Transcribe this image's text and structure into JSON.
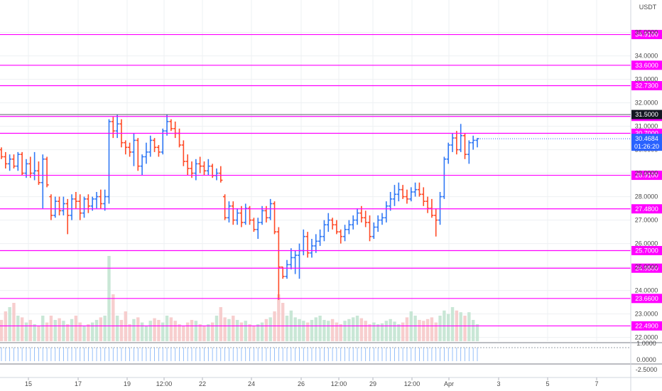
{
  "quote_currency": "USDT",
  "colors": {
    "up": "#3179f5",
    "down": "#ff4a27",
    "level_line": "#ff00ff",
    "level_label_bg": "#ff00ff",
    "price_label_bg": "#2962ff",
    "ref_label_bg": "#131722",
    "vol_up": "#bfe3cf",
    "vol_down": "#f6c6c6",
    "grid": "#eef0f3",
    "axis_text": "#4a4a4a"
  },
  "price_axis": {
    "ticks": [
      "35.0000",
      "34.0000",
      "33.0000",
      "32.0000",
      "31.0000",
      "30.0000",
      "29.0000",
      "28.0000",
      "27.0000",
      "26.0000",
      "25.0000",
      "24.0000",
      "23.0000",
      "22.0000"
    ]
  },
  "horizontal_levels": [
    "34.9100",
    "33.6000",
    "32.7300",
    "31.4200",
    "30.7000",
    "28.9100",
    "27.4800",
    "25.7000",
    "24.9500",
    "23.6600",
    "22.4900"
  ],
  "reference_level": "31.5000",
  "last_price": {
    "price": "30.4684",
    "countdown": "01:26:20"
  },
  "indicator_axis": {
    "ticks": [
      "1.0000",
      "0.0000",
      "-2.5000"
    ]
  },
  "time_axis": {
    "ticks": [
      "15",
      "17",
      "19",
      "12:00",
      "22",
      "24",
      "26",
      "12:00",
      "29",
      "12:00",
      "Apr",
      "3",
      "5",
      "7"
    ]
  },
  "chart_data": {
    "type": "ohlc",
    "series_description": "OHLC bars, USDT quoted, approx 6-hourly, mid-March to early April",
    "ohlc": [
      [
        30.0,
        30.1,
        29.6,
        29.7
      ],
      [
        29.7,
        29.9,
        29.2,
        29.4
      ],
      [
        29.4,
        29.8,
        29.1,
        29.6
      ],
      [
        29.6,
        29.8,
        29.2,
        29.3
      ],
      [
        29.3,
        29.9,
        29.1,
        29.8
      ],
      [
        29.8,
        29.9,
        28.9,
        29.0
      ],
      [
        29.0,
        29.6,
        28.8,
        29.4
      ],
      [
        29.4,
        29.7,
        28.8,
        29.0
      ],
      [
        29.0,
        29.9,
        28.7,
        29.1
      ],
      [
        29.1,
        29.5,
        28.5,
        28.6
      ],
      [
        28.6,
        29.8,
        27.5,
        29.6
      ],
      [
        29.6,
        29.7,
        28.4,
        28.5
      ],
      [
        28.0,
        28.1,
        27.0,
        27.2
      ],
      [
        27.2,
        28.0,
        27.1,
        27.8
      ],
      [
        27.8,
        28.0,
        27.2,
        27.4
      ],
      [
        27.4,
        28.0,
        27.2,
        27.7
      ],
      [
        27.7,
        27.9,
        26.4,
        27.2
      ],
      [
        27.2,
        28.1,
        27.0,
        27.9
      ],
      [
        27.9,
        28.2,
        27.5,
        27.8
      ],
      [
        27.8,
        28.1,
        27.0,
        27.3
      ],
      [
        27.3,
        28.0,
        27.1,
        27.9
      ],
      [
        27.9,
        28.1,
        27.3,
        27.6
      ],
      [
        27.6,
        28.0,
        27.4,
        27.9
      ],
      [
        27.9,
        28.2,
        27.5,
        28.0
      ],
      [
        28.0,
        28.3,
        27.5,
        27.7
      ],
      [
        27.7,
        28.3,
        27.4,
        28.0
      ],
      [
        28.0,
        31.3,
        27.7,
        31.2
      ],
      [
        31.2,
        31.4,
        30.5,
        30.8
      ],
      [
        30.8,
        31.5,
        30.5,
        31.1
      ],
      [
        31.1,
        31.3,
        30.1,
        30.3
      ],
      [
        30.3,
        30.4,
        29.8,
        30.1
      ],
      [
        30.1,
        30.3,
        29.7,
        29.9
      ],
      [
        29.9,
        30.7,
        29.3,
        30.4
      ],
      [
        30.4,
        30.5,
        29.1,
        29.3
      ],
      [
        29.3,
        29.8,
        28.9,
        29.7
      ],
      [
        29.7,
        30.3,
        29.4,
        29.9
      ],
      [
        29.9,
        30.6,
        29.7,
        30.4
      ],
      [
        30.4,
        30.5,
        29.9,
        30.1
      ],
      [
        30.1,
        30.2,
        29.7,
        29.9
      ],
      [
        29.9,
        30.9,
        29.8,
        30.8
      ],
      [
        30.8,
        31.5,
        30.6,
        31.2
      ],
      [
        31.2,
        31.3,
        30.8,
        30.9
      ],
      [
        30.9,
        31.2,
        30.5,
        30.7
      ],
      [
        30.7,
        30.9,
        30.1,
        30.2
      ],
      [
        30.2,
        30.4,
        29.3,
        29.5
      ],
      [
        29.5,
        29.8,
        28.9,
        29.2
      ],
      [
        29.2,
        29.5,
        28.8,
        29.0
      ],
      [
        29.0,
        29.6,
        28.7,
        29.4
      ],
      [
        29.4,
        29.7,
        29.0,
        29.3
      ],
      [
        29.3,
        29.5,
        28.9,
        29.1
      ],
      [
        29.1,
        29.6,
        28.9,
        29.3
      ],
      [
        29.3,
        29.4,
        28.8,
        28.9
      ],
      [
        28.9,
        29.2,
        28.7,
        29.0
      ],
      [
        29.0,
        29.3,
        28.6,
        28.7
      ],
      [
        28.0,
        28.1,
        27.0,
        27.1
      ],
      [
        27.1,
        27.8,
        26.9,
        27.6
      ],
      [
        27.6,
        27.8,
        26.8,
        27.0
      ],
      [
        27.0,
        27.5,
        26.8,
        27.3
      ],
      [
        27.3,
        27.6,
        26.7,
        26.9
      ],
      [
        26.9,
        27.7,
        26.8,
        27.5
      ],
      [
        27.5,
        27.6,
        26.8,
        27.0
      ],
      [
        27.0,
        27.1,
        26.5,
        26.6
      ],
      [
        26.6,
        27.1,
        26.2,
        26.9
      ],
      [
        26.9,
        27.6,
        26.8,
        27.4
      ],
      [
        27.4,
        27.6,
        26.9,
        27.1
      ],
      [
        27.1,
        27.9,
        27.0,
        27.7
      ],
      [
        27.7,
        27.8,
        26.4,
        26.5
      ],
      [
        26.5,
        26.7,
        23.6,
        25.0
      ],
      [
        25.0,
        25.0,
        24.5,
        24.6
      ],
      [
        24.6,
        25.3,
        24.5,
        25.1
      ],
      [
        25.1,
        25.8,
        24.9,
        25.4
      ],
      [
        25.4,
        25.7,
        24.7,
        25.5
      ],
      [
        25.5,
        26.0,
        24.5,
        25.7
      ],
      [
        25.7,
        26.6,
        25.5,
        26.3
      ],
      [
        26.3,
        26.5,
        25.4,
        25.6
      ],
      [
        25.6,
        26.2,
        25.4,
        25.9
      ],
      [
        25.9,
        26.4,
        25.6,
        26.1
      ],
      [
        26.1,
        26.6,
        25.9,
        26.3
      ],
      [
        26.3,
        27.0,
        26.1,
        26.8
      ],
      [
        26.8,
        27.3,
        26.5,
        27.0
      ],
      [
        27.0,
        27.1,
        26.6,
        26.8
      ],
      [
        26.8,
        27.0,
        26.4,
        26.5
      ],
      [
        26.5,
        26.6,
        26.0,
        26.3
      ],
      [
        26.3,
        26.8,
        26.1,
        26.6
      ],
      [
        26.6,
        27.0,
        26.4,
        26.8
      ],
      [
        26.8,
        27.2,
        26.6,
        27.0
      ],
      [
        27.0,
        27.5,
        26.8,
        27.3
      ],
      [
        27.3,
        27.6,
        26.9,
        27.1
      ],
      [
        27.1,
        27.4,
        26.7,
        26.9
      ],
      [
        26.9,
        27.2,
        26.1,
        26.3
      ],
      [
        26.3,
        26.9,
        26.2,
        26.7
      ],
      [
        26.7,
        27.2,
        26.5,
        27.0
      ],
      [
        27.0,
        27.3,
        26.8,
        27.1
      ],
      [
        27.1,
        27.8,
        26.9,
        27.6
      ],
      [
        27.6,
        28.2,
        27.4,
        27.9
      ],
      [
        27.9,
        28.5,
        27.6,
        28.1
      ],
      [
        28.1,
        28.6,
        27.8,
        28.3
      ],
      [
        28.3,
        28.5,
        27.9,
        28.0
      ],
      [
        28.0,
        28.3,
        27.7,
        27.9
      ],
      [
        27.9,
        28.4,
        27.8,
        28.2
      ],
      [
        28.2,
        28.6,
        28.0,
        28.3
      ],
      [
        28.3,
        28.6,
        28.0,
        28.1
      ],
      [
        28.1,
        28.4,
        27.6,
        27.8
      ],
      [
        27.8,
        28.0,
        27.3,
        27.5
      ],
      [
        27.5,
        27.9,
        27.1,
        27.2
      ],
      [
        27.2,
        27.5,
        26.3,
        27.0
      ],
      [
        27.0,
        28.2,
        26.8,
        28.0
      ],
      [
        28.0,
        29.7,
        27.9,
        29.6
      ],
      [
        29.6,
        30.3,
        29.4,
        30.2
      ],
      [
        30.2,
        30.7,
        29.9,
        30.5
      ],
      [
        30.5,
        30.8,
        29.8,
        30.0
      ],
      [
        30.0,
        31.1,
        29.9,
        30.6
      ],
      [
        30.6,
        30.7,
        29.6,
        29.8
      ],
      [
        29.8,
        30.4,
        29.4,
        30.3
      ],
      [
        30.3,
        30.6,
        30.0,
        30.4
      ],
      [
        30.4,
        30.5,
        30.1,
        30.47
      ]
    ],
    "volume_relative": [
      0.25,
      0.35,
      0.4,
      0.45,
      0.3,
      0.28,
      0.22,
      0.25,
      0.2,
      0.18,
      0.3,
      0.22,
      0.3,
      0.25,
      0.27,
      0.24,
      0.2,
      0.26,
      0.3,
      0.22,
      0.18,
      0.2,
      0.22,
      0.25,
      0.28,
      0.3,
      1.0,
      0.55,
      0.3,
      0.25,
      0.35,
      0.2,
      0.26,
      0.28,
      0.22,
      0.18,
      0.24,
      0.27,
      0.25,
      0.22,
      0.3,
      0.28,
      0.24,
      0.2,
      0.18,
      0.22,
      0.25,
      0.24,
      0.2,
      0.18,
      0.2,
      0.22,
      0.3,
      0.4,
      0.28,
      0.26,
      0.3,
      0.25,
      0.22,
      0.24,
      0.2,
      0.18,
      0.2,
      0.22,
      0.26,
      0.28,
      0.35,
      0.55,
      0.45,
      0.3,
      0.36,
      0.28,
      0.26,
      0.24,
      0.22,
      0.25,
      0.28,
      0.3,
      0.25,
      0.24,
      0.26,
      0.22,
      0.2,
      0.24,
      0.26,
      0.28,
      0.3,
      0.27,
      0.24,
      0.2,
      0.22,
      0.2,
      0.21,
      0.24,
      0.26,
      0.23,
      0.2,
      0.22,
      0.28,
      0.35,
      0.3,
      0.25,
      0.24,
      0.26,
      0.28,
      0.22,
      0.3,
      0.36,
      0.32,
      0.4,
      0.36,
      0.34,
      0.3,
      0.34,
      0.25,
      0.2
    ]
  }
}
